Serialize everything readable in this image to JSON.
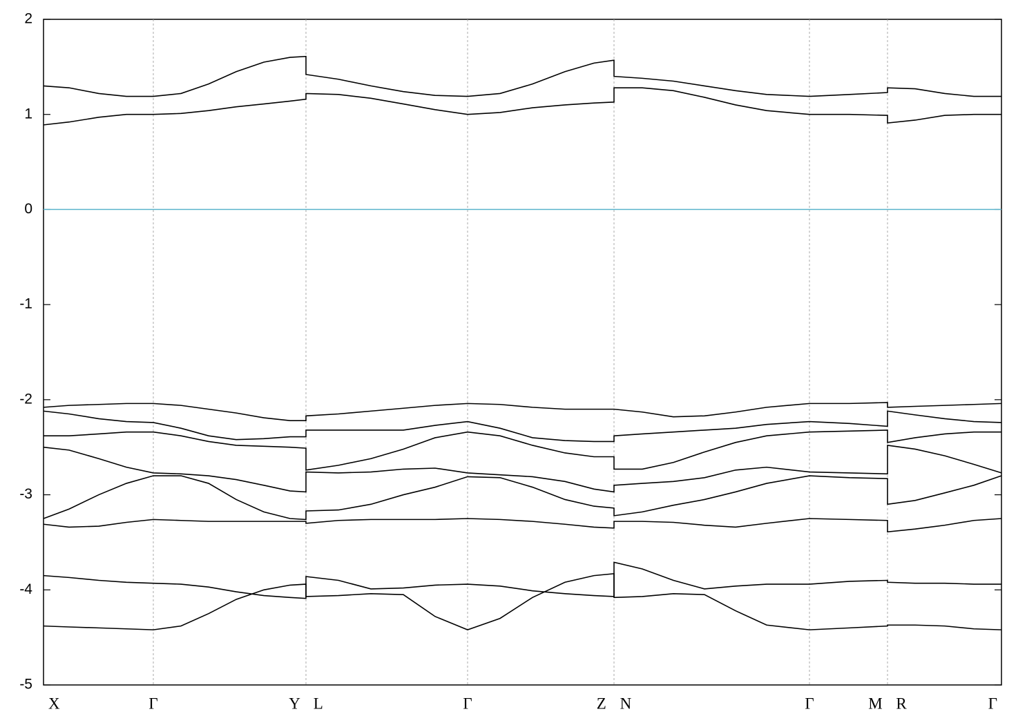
{
  "chart_data": {
    "type": "line",
    "xlim": [
      0,
      1387
    ],
    "ylim": [
      -5,
      2
    ],
    "yticks": [
      2,
      1,
      0,
      -1,
      -2,
      -3,
      -4,
      -5
    ],
    "xticks": [
      {
        "value": 0,
        "label": "X"
      },
      {
        "value": 159,
        "label": "Γ"
      },
      {
        "value": 380,
        "label": "Y L"
      },
      {
        "value": 614,
        "label": "Γ"
      },
      {
        "value": 826,
        "label": "Z N"
      },
      {
        "value": 1109,
        "label": "Γ"
      },
      {
        "value": 1222,
        "label": "M R"
      },
      {
        "value": 1387,
        "label": "Γ"
      }
    ],
    "grid": true,
    "hline": 0,
    "hline_color": "#5ab4cc",
    "x": [
      0,
      37,
      80,
      120,
      159,
      199,
      239,
      279,
      319,
      357,
      380,
      380,
      427,
      474,
      521,
      567,
      614,
      661,
      708,
      755,
      797,
      826,
      826,
      867,
      912,
      957,
      1002,
      1047,
      1109,
      1167,
      1222,
      1222,
      1262,
      1305,
      1347,
      1387
    ],
    "series": [
      {
        "color": "#000000",
        "values": [
          1.3,
          1.28,
          1.22,
          1.19,
          1.19,
          1.22,
          1.32,
          1.45,
          1.55,
          1.6,
          1.61,
          1.42,
          1.37,
          1.3,
          1.24,
          1.2,
          1.19,
          1.22,
          1.32,
          1.45,
          1.54,
          1.57,
          1.4,
          1.38,
          1.35,
          1.3,
          1.25,
          1.21,
          1.19,
          1.21,
          1.23,
          1.28,
          1.27,
          1.22,
          1.19,
          1.19
        ]
      },
      {
        "color": "#000000",
        "values": [
          0.89,
          0.92,
          0.97,
          1.0,
          1.0,
          1.01,
          1.04,
          1.08,
          1.11,
          1.14,
          1.16,
          1.22,
          1.21,
          1.17,
          1.11,
          1.05,
          1.0,
          1.02,
          1.07,
          1.1,
          1.12,
          1.13,
          1.28,
          1.28,
          1.25,
          1.18,
          1.1,
          1.04,
          1.0,
          1.0,
          0.99,
          0.91,
          0.94,
          0.99,
          1.0,
          1.0
        ]
      },
      {
        "color": "#000000",
        "values": [
          -2.08,
          -2.06,
          -2.05,
          -2.04,
          -2.04,
          -2.06,
          -2.1,
          -2.14,
          -2.19,
          -2.22,
          -2.22,
          -2.17,
          -2.15,
          -2.12,
          -2.09,
          -2.06,
          -2.04,
          -2.05,
          -2.08,
          -2.1,
          -2.1,
          -2.1,
          -2.1,
          -2.13,
          -2.18,
          -2.17,
          -2.13,
          -2.08,
          -2.04,
          -2.04,
          -2.03,
          -2.08,
          -2.07,
          -2.06,
          -2.05,
          -2.04
        ]
      },
      {
        "color": "#000000",
        "values": [
          -2.12,
          -2.15,
          -2.2,
          -2.23,
          -2.24,
          -2.3,
          -2.38,
          -2.42,
          -2.41,
          -2.39,
          -2.39,
          -2.32,
          -2.32,
          -2.32,
          -2.32,
          -2.27,
          -2.23,
          -2.3,
          -2.4,
          -2.43,
          -2.44,
          -2.44,
          -2.38,
          -2.36,
          -2.34,
          -2.32,
          -2.3,
          -2.26,
          -2.23,
          -2.25,
          -2.28,
          -2.12,
          -2.16,
          -2.2,
          -2.23,
          -2.24
        ]
      },
      {
        "color": "#000000",
        "values": [
          -2.38,
          -2.38,
          -2.36,
          -2.34,
          -2.34,
          -2.38,
          -2.44,
          -2.48,
          -2.49,
          -2.5,
          -2.51,
          -2.74,
          -2.69,
          -2.62,
          -2.52,
          -2.4,
          -2.34,
          -2.38,
          -2.48,
          -2.56,
          -2.6,
          -2.6,
          -2.73,
          -2.73,
          -2.66,
          -2.55,
          -2.45,
          -2.38,
          -2.34,
          -2.33,
          -2.32,
          -2.45,
          -2.4,
          -2.36,
          -2.34,
          -2.34
        ]
      },
      {
        "color": "#000000",
        "values": [
          -2.5,
          -2.53,
          -2.62,
          -2.71,
          -2.77,
          -2.78,
          -2.8,
          -2.84,
          -2.9,
          -2.96,
          -2.97,
          -2.76,
          -2.77,
          -2.76,
          -2.73,
          -2.72,
          -2.77,
          -2.79,
          -2.81,
          -2.86,
          -2.94,
          -2.97,
          -2.9,
          -2.88,
          -2.86,
          -2.82,
          -2.74,
          -2.71,
          -2.76,
          -2.77,
          -2.78,
          -2.48,
          -2.52,
          -2.59,
          -2.68,
          -2.77
        ]
      },
      {
        "color": "#000000",
        "values": [
          -3.25,
          -3.15,
          -3.0,
          -2.88,
          -2.8,
          -2.8,
          -2.88,
          -3.05,
          -3.18,
          -3.25,
          -3.26,
          -3.17,
          -3.16,
          -3.1,
          -3.0,
          -2.92,
          -2.81,
          -2.82,
          -2.92,
          -3.05,
          -3.12,
          -3.14,
          -3.22,
          -3.18,
          -3.11,
          -3.05,
          -2.97,
          -2.88,
          -2.8,
          -2.82,
          -2.83,
          -3.1,
          -3.06,
          -2.98,
          -2.9,
          -2.8
        ]
      },
      {
        "color": "#000000",
        "values": [
          -3.31,
          -3.34,
          -3.33,
          -3.29,
          -3.26,
          -3.27,
          -3.28,
          -3.28,
          -3.28,
          -3.28,
          -3.28,
          -3.3,
          -3.27,
          -3.26,
          -3.26,
          -3.26,
          -3.25,
          -3.26,
          -3.28,
          -3.31,
          -3.34,
          -3.35,
          -3.28,
          -3.28,
          -3.29,
          -3.32,
          -3.34,
          -3.3,
          -3.25,
          -3.26,
          -3.27,
          -3.39,
          -3.36,
          -3.32,
          -3.27,
          -3.25
        ]
      },
      {
        "color": "#000000",
        "values": [
          -3.85,
          -3.87,
          -3.9,
          -3.92,
          -3.93,
          -3.94,
          -3.97,
          -4.02,
          -4.06,
          -4.08,
          -4.09,
          -3.86,
          -3.9,
          -3.99,
          -3.98,
          -3.95,
          -3.94,
          -3.96,
          -4.01,
          -4.04,
          -4.06,
          -4.07,
          -3.71,
          -3.78,
          -3.9,
          -3.99,
          -3.96,
          -3.94,
          -3.94,
          -3.91,
          -3.9,
          -3.92,
          -3.93,
          -3.93,
          -3.94,
          -3.94
        ]
      },
      {
        "color": "#000000",
        "values": [
          -4.38,
          -4.39,
          -4.4,
          -4.41,
          -4.42,
          -4.38,
          -4.25,
          -4.1,
          -4.0,
          -3.95,
          -3.94,
          -4.07,
          -4.06,
          -4.04,
          -4.05,
          -4.28,
          -4.42,
          -4.3,
          -4.08,
          -3.92,
          -3.85,
          -3.83,
          -4.08,
          -4.07,
          -4.04,
          -4.05,
          -4.22,
          -4.37,
          -4.42,
          -4.4,
          -4.38,
          -4.37,
          -4.37,
          -4.38,
          -4.41,
          -4.42
        ]
      }
    ]
  }
}
